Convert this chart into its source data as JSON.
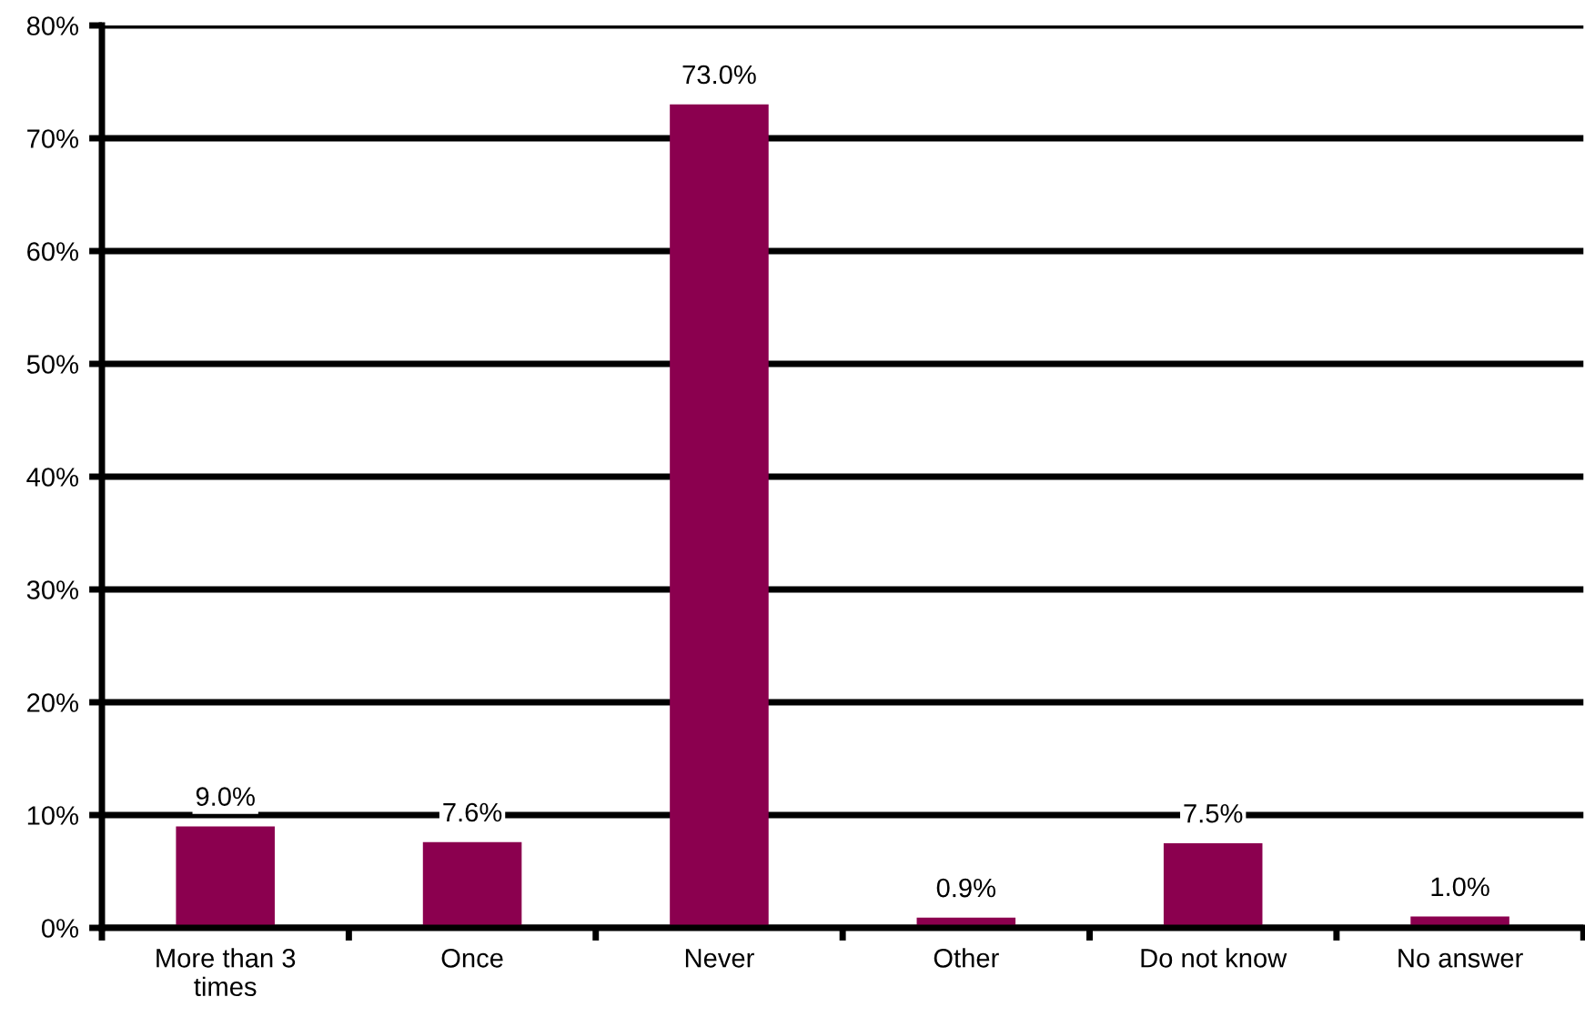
{
  "chart_data": {
    "type": "bar",
    "categories": [
      "More than 3\ntimes",
      "Once",
      "Never",
      "Other",
      "Do not know",
      "No answer"
    ],
    "values": [
      9.0,
      7.6,
      73.0,
      0.9,
      7.5,
      1.0
    ],
    "value_labels": [
      "9.0%",
      "7.6%",
      "73.0%",
      "0.9%",
      "7.5%",
      "1.0%"
    ],
    "color": "#8b004f",
    "ylim": [
      0,
      80
    ],
    "yticks": [
      {
        "value": 0,
        "label": "0%"
      },
      {
        "value": 10,
        "label": "10%"
      },
      {
        "value": 20,
        "label": "20%"
      },
      {
        "value": 30,
        "label": "30%"
      },
      {
        "value": 40,
        "label": "40%"
      },
      {
        "value": 50,
        "label": "50%"
      },
      {
        "value": 60,
        "label": "60%"
      },
      {
        "value": 70,
        "label": "70%"
      },
      {
        "value": 80,
        "label": "80%"
      }
    ],
    "grid": "y",
    "legend": false
  }
}
